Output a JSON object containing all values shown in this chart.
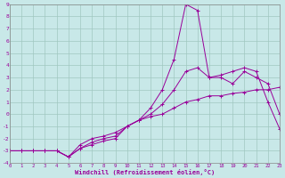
{
  "x": [
    0,
    1,
    2,
    3,
    4,
    5,
    6,
    7,
    8,
    9,
    10,
    11,
    12,
    13,
    14,
    15,
    16,
    17,
    18,
    19,
    20,
    21,
    22,
    23
  ],
  "line_spike": [
    -3,
    -3,
    -3,
    -3,
    -3,
    -3.5,
    -2.8,
    -2.5,
    -2.2,
    -2,
    -1,
    -0.5,
    0.5,
    2,
    4.5,
    9,
    8.5,
    3,
    3.2,
    3.5,
    3.8,
    3.5,
    1,
    -1.2
  ],
  "line_mid": [
    -3,
    -3,
    -3,
    -3,
    -3,
    -3.5,
    -2.8,
    -2.3,
    -2,
    -1.8,
    -1,
    -0.5,
    0,
    0.8,
    2,
    3.5,
    3.8,
    3,
    3,
    2.5,
    3.5,
    3,
    2.5,
    0
  ],
  "line_flat": [
    -3,
    -3,
    -3,
    -3,
    -3,
    -3.5,
    -2.5,
    -2,
    -1.8,
    -1.5,
    -1,
    -0.5,
    -0.2,
    0,
    0.5,
    1,
    1.2,
    1.5,
    1.5,
    1.7,
    1.8,
    2,
    2,
    2.2
  ],
  "color": "#990099",
  "bg_color": "#c8e8e8",
  "grid_color": "#a0c8c0",
  "xlabel": "Windchill (Refroidissement éolien,°C)",
  "ylim": [
    -4,
    9
  ],
  "xlim": [
    0,
    23
  ],
  "yticks": [
    -4,
    -3,
    -2,
    -1,
    0,
    1,
    2,
    3,
    4,
    5,
    6,
    7,
    8,
    9
  ],
  "xticks": [
    0,
    1,
    2,
    3,
    4,
    5,
    6,
    7,
    8,
    9,
    10,
    11,
    12,
    13,
    14,
    15,
    16,
    17,
    18,
    19,
    20,
    21,
    22,
    23
  ]
}
